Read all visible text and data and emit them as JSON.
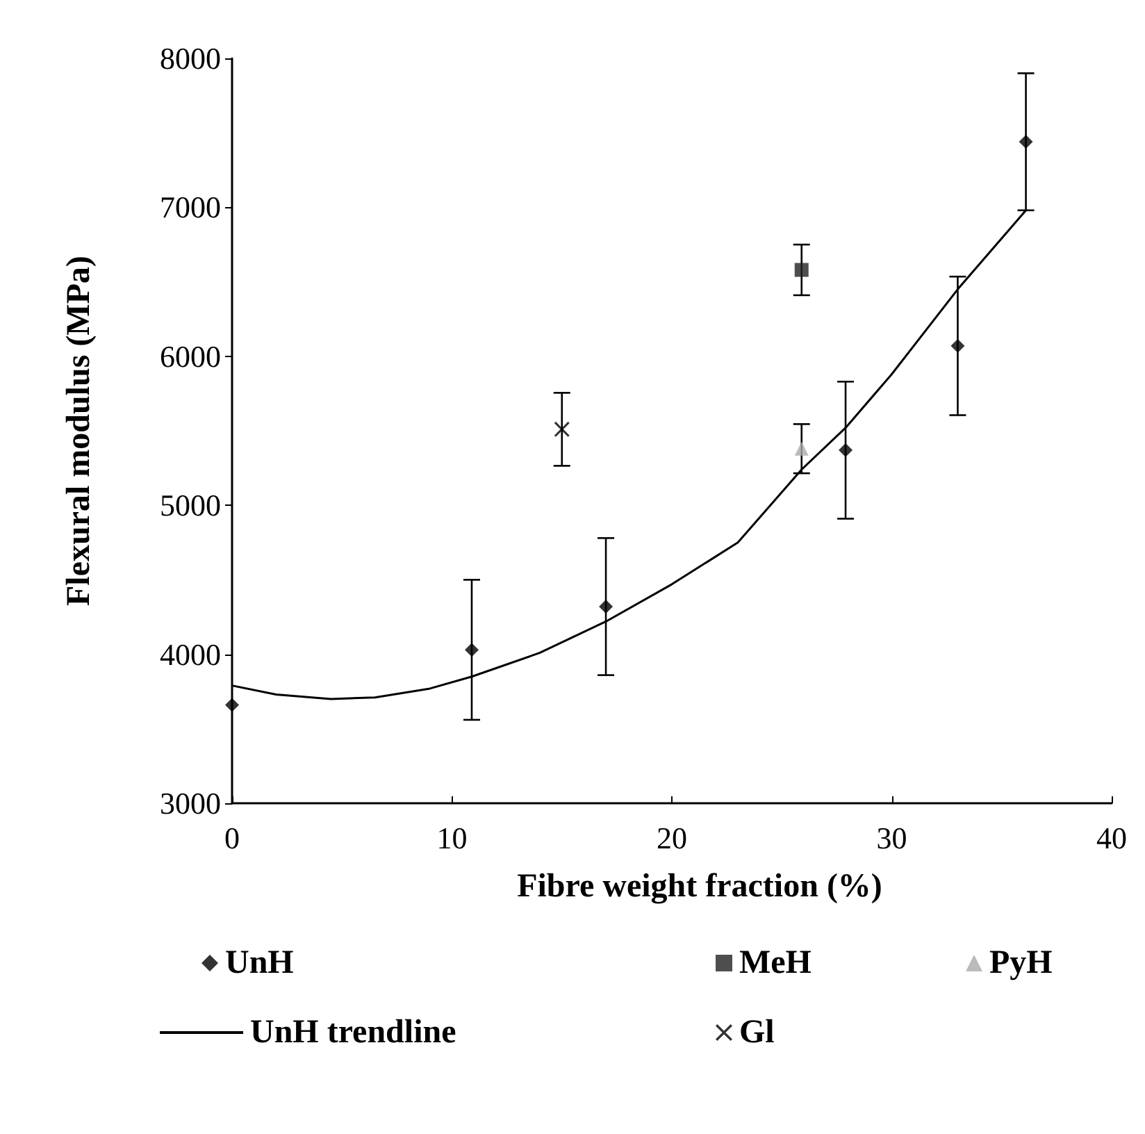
{
  "chart_data": {
    "type": "scatter",
    "xlabel": "Fibre weight fraction (%)",
    "ylabel": "Flexural modulus (MPa)",
    "xlim": [
      0,
      40
    ],
    "xticks": [
      0,
      10,
      20,
      30,
      40
    ],
    "ylim": [
      3000,
      8000
    ],
    "yticks": [
      3000,
      4000,
      5000,
      6000,
      7000,
      8000
    ],
    "grid": false,
    "legend": "bottom",
    "series": [
      {
        "name": "UnH",
        "marker": "diamond",
        "color": "#000000",
        "x": [
          0,
          10.9,
          17.0,
          27.9,
          33.0,
          36.1
        ],
        "values": [
          3660,
          4030,
          4320,
          5370,
          6070,
          7440
        ],
        "errors": [
          null,
          470,
          460,
          460,
          465,
          460
        ]
      },
      {
        "name": "MeH",
        "marker": "square",
        "color": "#222222",
        "x": [
          25.9
        ],
        "values": [
          6580
        ],
        "errors": [
          170
        ]
      },
      {
        "name": "PyH",
        "marker": "triangle",
        "color": "#aaaaaa",
        "x": [
          25.9
        ],
        "values": [
          5380
        ],
        "errors": [
          165
        ]
      },
      {
        "name": "UnH trendline",
        "type": "line",
        "marker": "none",
        "color": "#000000",
        "x": [
          0,
          2,
          4.5,
          6.5,
          9,
          10.9,
          14,
          17,
          20,
          23,
          25.9,
          27.9,
          30,
          33,
          36.1
        ],
        "values": [
          3790,
          3730,
          3700,
          3710,
          3770,
          3850,
          4010,
          4220,
          4470,
          4750,
          5240,
          5520,
          5880,
          6450,
          6980
        ]
      },
      {
        "name": "Gl",
        "marker": "cross",
        "color": "#000000",
        "x": [
          15.0
        ],
        "values": [
          5510
        ],
        "errors": [
          245
        ]
      }
    ]
  }
}
